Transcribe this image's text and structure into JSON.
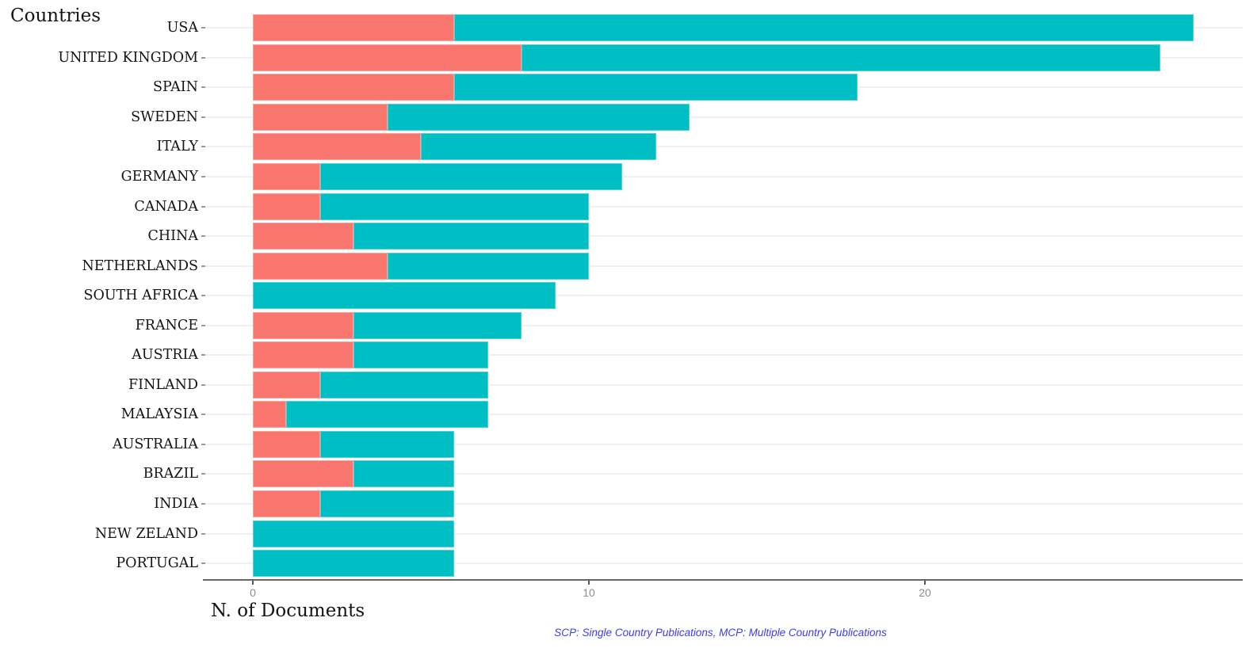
{
  "title": "Countries",
  "xlabel": "N. of Documents",
  "caption": "SCP: Single Country Publications, MCP: Multiple Country Publications",
  "colors": {
    "scp": "#F8766D",
    "mcp": "#00BFC4",
    "caption_text": "#3C3CEC",
    "axis_line": "#666666",
    "tick_label": "#8C8C8C",
    "label_text": "#141414",
    "gridline": "#F0F0F0",
    "background": "#FFFFFF"
  },
  "chart_data": {
    "type": "bar",
    "orientation": "horizontal",
    "stacked": true,
    "title": "Countries",
    "xlabel": "N. of Documents",
    "ylabel": "",
    "caption": "SCP: Single Country Publications, MCP: Multiple Country Publications",
    "legend": "none",
    "grid": "horizontal-only",
    "x_ticks": [
      0,
      10,
      20
    ],
    "xlim": [
      0,
      28
    ],
    "categories": [
      "USA",
      "UNITED KINGDOM",
      "SPAIN",
      "SWEDEN",
      "ITALY",
      "GERMANY",
      "CANADA",
      "CHINA",
      "NETHERLANDS",
      "SOUTH AFRICA",
      "FRANCE",
      "AUSTRIA",
      "FINLAND",
      "MALAYSIA",
      "AUSTRALIA",
      "BRAZIL",
      "INDIA",
      "NEW ZELAND",
      "PORTUGAL"
    ],
    "series": [
      {
        "name": "SCP",
        "color": "#F8766D",
        "values": [
          6,
          8,
          6,
          4,
          5,
          2,
          2,
          3,
          4,
          0,
          3,
          3,
          2,
          1,
          2,
          3,
          2,
          0,
          0
        ]
      },
      {
        "name": "MCP",
        "color": "#00BFC4",
        "values": [
          22,
          19,
          12,
          9,
          7,
          9,
          8,
          7,
          6,
          9,
          5,
          4,
          5,
          6,
          4,
          3,
          4,
          6,
          6
        ]
      }
    ],
    "totals": [
      28,
      27,
      18,
      13,
      12,
      11,
      10,
      10,
      10,
      9,
      8,
      7,
      7,
      7,
      6,
      6,
      6,
      6,
      6
    ]
  }
}
